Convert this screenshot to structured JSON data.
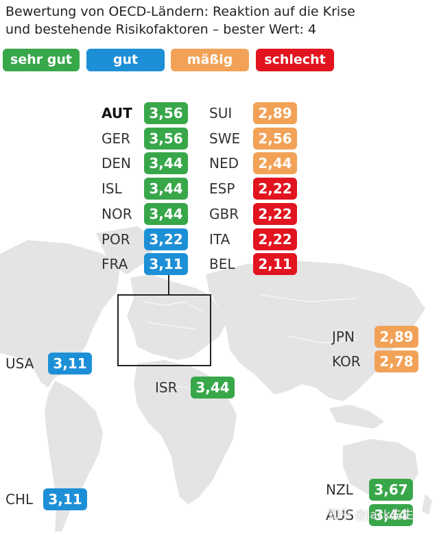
{
  "title": {
    "line1": "Bewertung von OECD-Ländern: Reaktion auf die Krise",
    "line2": "und bestehende Risikofaktoren – bester Wert: 4"
  },
  "legend": [
    {
      "label": "sehr gut",
      "color": "#38a74a"
    },
    {
      "label": "gut",
      "color": "#1d8fd6"
    },
    {
      "label": "mäßig",
      "color": "#f2a257"
    },
    {
      "label": "schlecht",
      "color": "#e1141f"
    }
  ],
  "europe_left": [
    {
      "code": "AUT",
      "value": "3,56",
      "rating": "sehr gut"
    },
    {
      "code": "GER",
      "value": "3,56",
      "rating": "sehr gut"
    },
    {
      "code": "DEN",
      "value": "3,44",
      "rating": "sehr gut"
    },
    {
      "code": "ISL",
      "value": "3,44",
      "rating": "sehr gut"
    },
    {
      "code": "NOR",
      "value": "3,44",
      "rating": "sehr gut"
    },
    {
      "code": "POR",
      "value": "3,22",
      "rating": "gut"
    },
    {
      "code": "FRA",
      "value": "3,11",
      "rating": "gut"
    }
  ],
  "europe_right": [
    {
      "code": "SUI",
      "value": "2,89",
      "rating": "mäßig"
    },
    {
      "code": "SWE",
      "value": "2,56",
      "rating": "mäßig"
    },
    {
      "code": "NED",
      "value": "2,44",
      "rating": "mäßig"
    },
    {
      "code": "ESP",
      "value": "2,22",
      "rating": "schlecht"
    },
    {
      "code": "GBR",
      "value": "2,22",
      "rating": "schlecht"
    },
    {
      "code": "ITA",
      "value": "2,22",
      "rating": "schlecht"
    },
    {
      "code": "BEL",
      "value": "2,11",
      "rating": "schlecht"
    }
  ],
  "world": {
    "usa": {
      "code": "USA",
      "value": "3,11",
      "rating": "gut"
    },
    "chl": {
      "code": "CHL",
      "value": "3,11",
      "rating": "gut"
    },
    "isr": {
      "code": "ISR",
      "value": "3,44",
      "rating": "sehr gut"
    },
    "jpn": {
      "code": "JPN",
      "value": "2,89",
      "rating": "mäßig"
    },
    "kor": {
      "code": "KOR",
      "value": "2,78",
      "rating": "mäßig"
    },
    "nzl": {
      "code": "NZL",
      "value": "3,67",
      "rating": "sehr gut"
    },
    "aus": {
      "code": "AUS",
      "value": "3,44",
      "rating": "sehr gut"
    }
  },
  "watermark": "知乎 @Jack先生"
}
